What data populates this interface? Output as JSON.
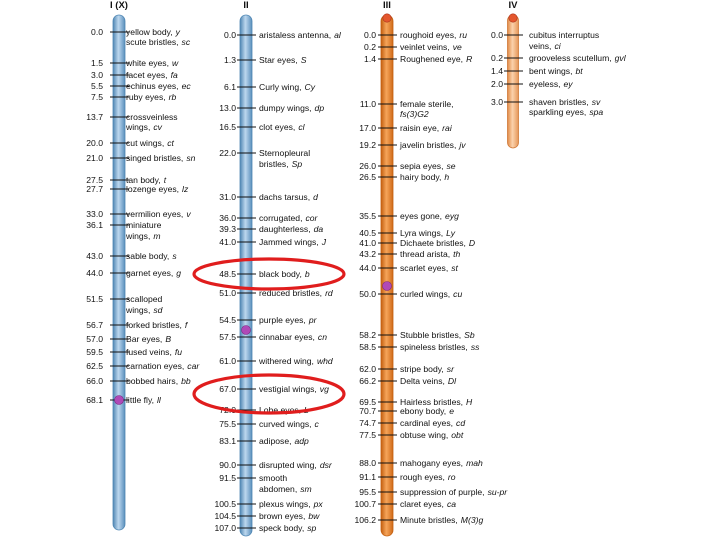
{
  "colors": {
    "chrom_blue": "#8db7d8",
    "chrom_blue_dark": "#4f86b3",
    "chrom_orange": "#ee8a2c",
    "chrom_orange_dark": "#c45f10",
    "chrom_peach": "#f6b37d",
    "centromere": "#b049b7",
    "highlight": "#e01d1d"
  },
  "chromosomes": [
    {
      "id": "I",
      "title": "I (X)",
      "style": "blue",
      "genes": [
        {
          "pos": "0.0",
          "name": "yellow body,",
          "sym": "y"
        },
        {
          "pos": "",
          "name": "scute bristles,",
          "sym": "sc"
        },
        {
          "pos": "1.5",
          "name": "white eyes,",
          "sym": "w"
        },
        {
          "pos": "3.0",
          "name": "facet eyes,",
          "sym": "fa"
        },
        {
          "pos": "5.5",
          "name": "echinus eyes,",
          "sym": "ec"
        },
        {
          "pos": "7.5",
          "name": "ruby eyes,",
          "sym": "rb"
        },
        {
          "pos": "13.7",
          "name": "crossveinless",
          "sym": ""
        },
        {
          "pos": "",
          "name": "wings,",
          "sym": "cv"
        },
        {
          "pos": "20.0",
          "name": "cut wings,",
          "sym": "ct"
        },
        {
          "pos": "21.0",
          "name": "singed bristles,",
          "sym": "sn"
        },
        {
          "pos": "27.5",
          "name": "tan body,",
          "sym": "t"
        },
        {
          "pos": "27.7",
          "name": "lozenge eyes,",
          "sym": "lz"
        },
        {
          "pos": "33.0",
          "name": "vermilion eyes,",
          "sym": "v"
        },
        {
          "pos": "36.1",
          "name": "miniature",
          "sym": ""
        },
        {
          "pos": "",
          "name": "wings,",
          "sym": "m"
        },
        {
          "pos": "43.0",
          "name": "sable body,",
          "sym": "s"
        },
        {
          "pos": "44.0",
          "name": "garnet eyes,",
          "sym": "g"
        },
        {
          "pos": "51.5",
          "name": "scalloped",
          "sym": ""
        },
        {
          "pos": "",
          "name": "wings,",
          "sym": "sd"
        },
        {
          "pos": "56.7",
          "name": "forked bristles,",
          "sym": "f"
        },
        {
          "pos": "57.0",
          "name": "Bar eyes,",
          "sym": "B"
        },
        {
          "pos": "59.5",
          "name": "fused veins,",
          "sym": "fu"
        },
        {
          "pos": "62.5",
          "name": "carnation eyes,",
          "sym": "car"
        },
        {
          "pos": "66.0",
          "name": "bobbed hairs,",
          "sym": "bb"
        },
        {
          "pos": "68.1",
          "name": "little fly,",
          "sym": "ll"
        }
      ]
    },
    {
      "id": "II",
      "title": "II",
      "style": "blue",
      "genes": [
        {
          "pos": "0.0",
          "name": "aristaless antenna,",
          "sym": "al"
        },
        {
          "pos": "1.3",
          "name": "Star eyes,",
          "sym": "S"
        },
        {
          "pos": "6.1",
          "name": "Curly wing,",
          "sym": "Cy"
        },
        {
          "pos": "13.0",
          "name": "dumpy wings,",
          "sym": "dp"
        },
        {
          "pos": "16.5",
          "name": "clot eyes,",
          "sym": "cl"
        },
        {
          "pos": "22.0",
          "name": "Sternopleural",
          "sym": ""
        },
        {
          "pos": "",
          "name": "bristles,",
          "sym": "Sp"
        },
        {
          "pos": "31.0",
          "name": "dachs tarsus,",
          "sym": "d"
        },
        {
          "pos": "36.0",
          "name": "corrugated,",
          "sym": "cor"
        },
        {
          "pos": "39.3",
          "name": "daughterless,",
          "sym": "da"
        },
        {
          "pos": "41.0",
          "name": "Jammed wings,",
          "sym": "J"
        },
        {
          "pos": "48.5",
          "name": "black body,",
          "sym": "b"
        },
        {
          "pos": "51.0",
          "name": "reduced bristles,",
          "sym": "rd"
        },
        {
          "pos": "54.5",
          "name": "purple eyes,",
          "sym": "pr"
        },
        {
          "pos": "57.5",
          "name": "cinnabar eyes,",
          "sym": "cn"
        },
        {
          "pos": "61.0",
          "name": "withered wing,",
          "sym": "whd"
        },
        {
          "pos": "67.0",
          "name": "vestigial wings,",
          "sym": "vg"
        },
        {
          "pos": "72.0",
          "name": "Lobe eyes,",
          "sym": "L"
        },
        {
          "pos": "75.5",
          "name": "curved wings,",
          "sym": "c"
        },
        {
          "pos": "83.1",
          "name": "adipose,",
          "sym": "adp"
        },
        {
          "pos": "90.0",
          "name": "disrupted wing,",
          "sym": "dsr"
        },
        {
          "pos": "91.5",
          "name": "smooth",
          "sym": ""
        },
        {
          "pos": "",
          "name": "abdomen,",
          "sym": "sm"
        },
        {
          "pos": "100.5",
          "name": "plexus wings,",
          "sym": "px"
        },
        {
          "pos": "104.5",
          "name": "brown eyes,",
          "sym": "bw"
        },
        {
          "pos": "107.0",
          "name": "speck body,",
          "sym": "sp"
        }
      ]
    },
    {
      "id": "III",
      "title": "III",
      "style": "orange",
      "genes": [
        {
          "pos": "0.0",
          "name": "roughoid eyes,",
          "sym": "ru"
        },
        {
          "pos": "0.2",
          "name": "veinlet veins,",
          "sym": "ve"
        },
        {
          "pos": "1.4",
          "name": "Roughened eye,",
          "sym": "R"
        },
        {
          "pos": "11.0",
          "name": "female sterile,",
          "sym": ""
        },
        {
          "pos": "",
          "name": "",
          "sym": "fs(3)G2"
        },
        {
          "pos": "17.0",
          "name": "raisin eye,",
          "sym": "rai"
        },
        {
          "pos": "19.2",
          "name": "javelin bristles,",
          "sym": "jv"
        },
        {
          "pos": "26.0",
          "name": "sepia eyes,",
          "sym": "se"
        },
        {
          "pos": "26.5",
          "name": "hairy body,",
          "sym": "h"
        },
        {
          "pos": "35.5",
          "name": "eyes gone,",
          "sym": "eyg"
        },
        {
          "pos": "40.5",
          "name": "Lyra wings,",
          "sym": "Ly"
        },
        {
          "pos": "41.0",
          "name": "Dichaete bristles,",
          "sym": "D"
        },
        {
          "pos": "43.2",
          "name": "thread arista,",
          "sym": "th"
        },
        {
          "pos": "44.0",
          "name": "scarlet eyes,",
          "sym": "st"
        },
        {
          "pos": "50.0",
          "name": "curled wings,",
          "sym": "cu"
        },
        {
          "pos": "58.2",
          "name": "Stubble bristles,",
          "sym": "Sb"
        },
        {
          "pos": "58.5",
          "name": "spineless bristles,",
          "sym": "ss"
        },
        {
          "pos": "62.0",
          "name": "stripe body,",
          "sym": "sr"
        },
        {
          "pos": "66.2",
          "name": "Delta veins,",
          "sym": "Dl"
        },
        {
          "pos": "69.5",
          "name": "Hairless bristles,",
          "sym": "H"
        },
        {
          "pos": "70.7",
          "name": "ebony body,",
          "sym": "e"
        },
        {
          "pos": "74.7",
          "name": "cardinal eyes,",
          "sym": "cd"
        },
        {
          "pos": "77.5",
          "name": "obtuse wing,",
          "sym": "obt"
        },
        {
          "pos": "88.0",
          "name": "mahogany eyes,",
          "sym": "mah"
        },
        {
          "pos": "91.1",
          "name": "rough eyes,",
          "sym": "ro"
        },
        {
          "pos": "95.5",
          "name": "suppression of purple,",
          "sym": "su-pr"
        },
        {
          "pos": "100.7",
          "name": "claret eyes,",
          "sym": "ca"
        },
        {
          "pos": "106.2",
          "name": "Minute bristles,",
          "sym": "M(3)g"
        }
      ]
    },
    {
      "id": "IV",
      "title": "IV",
      "style": "peach",
      "genes": [
        {
          "pos": "0.0",
          "name": "cubitus interruptus",
          "sym": ""
        },
        {
          "pos": "",
          "name": "veins,",
          "sym": "ci"
        },
        {
          "pos": "0.2",
          "name": "grooveless scutellum,",
          "sym": "gvl"
        },
        {
          "pos": "1.4",
          "name": "bent wings,",
          "sym": "bt"
        },
        {
          "pos": "2.0",
          "name": "eyeless,",
          "sym": "ey"
        },
        {
          "pos": "3.0",
          "name": "shaven bristles,",
          "sym": "sv"
        },
        {
          "pos": "",
          "name": "sparkling eyes,",
          "sym": "spa"
        }
      ]
    }
  ],
  "highlights": [
    "black-body",
    "vestigial-wings"
  ]
}
